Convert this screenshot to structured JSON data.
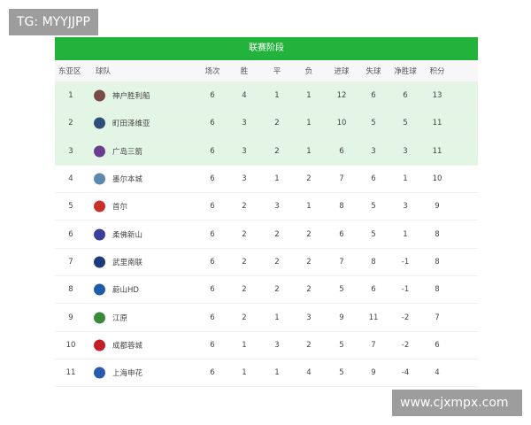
{
  "watermark_top": "TG: MYYJJPP",
  "watermark_bottom": "www.cjxmpx.com",
  "table": {
    "title": "联赛阶段",
    "headers": [
      "东亚区",
      "球队",
      "场次",
      "胜",
      "平",
      "负",
      "进球",
      "失球",
      "净胜球",
      "积分"
    ],
    "rows": [
      {
        "rank": "1",
        "team": "神户胜利船",
        "p": "6",
        "w": "4",
        "d": "1",
        "l": "1",
        "gf": "12",
        "ga": "6",
        "gd": "6",
        "pts": "13",
        "logo_color": "#7a4a4a"
      },
      {
        "rank": "2",
        "team": "町田泽维亚",
        "p": "6",
        "w": "3",
        "d": "2",
        "l": "1",
        "gf": "10",
        "ga": "5",
        "gd": "5",
        "pts": "11",
        "logo_color": "#2f4f7a"
      },
      {
        "rank": "3",
        "team": "广岛三箭",
        "p": "6",
        "w": "3",
        "d": "2",
        "l": "1",
        "gf": "6",
        "ga": "3",
        "gd": "3",
        "pts": "11",
        "logo_color": "#6a3d8f"
      },
      {
        "rank": "4",
        "team": "墨尔本城",
        "p": "6",
        "w": "3",
        "d": "1",
        "l": "2",
        "gf": "7",
        "ga": "6",
        "gd": "1",
        "pts": "10",
        "logo_color": "#5e88b0"
      },
      {
        "rank": "5",
        "team": "首尔",
        "p": "6",
        "w": "2",
        "d": "3",
        "l": "1",
        "gf": "8",
        "ga": "5",
        "gd": "3",
        "pts": "9",
        "logo_color": "#c8302a"
      },
      {
        "rank": "6",
        "team": "柔佛新山",
        "p": "6",
        "w": "2",
        "d": "2",
        "l": "2",
        "gf": "6",
        "ga": "5",
        "gd": "1",
        "pts": "8",
        "logo_color": "#3b3f9a"
      },
      {
        "rank": "7",
        "team": "武里南联",
        "p": "6",
        "w": "2",
        "d": "2",
        "l": "2",
        "gf": "7",
        "ga": "8",
        "gd": "-1",
        "pts": "8",
        "logo_color": "#1f3a7a"
      },
      {
        "rank": "8",
        "team": "蔚山HD",
        "p": "6",
        "w": "2",
        "d": "2",
        "l": "2",
        "gf": "5",
        "ga": "6",
        "gd": "-1",
        "pts": "8",
        "logo_color": "#1f5ca8"
      },
      {
        "rank": "9",
        "team": "江原",
        "p": "6",
        "w": "2",
        "d": "1",
        "l": "3",
        "gf": "9",
        "ga": "11",
        "gd": "-2",
        "pts": "7",
        "logo_color": "#3a8a3a"
      },
      {
        "rank": "10",
        "team": "成都蓉城",
        "p": "6",
        "w": "1",
        "d": "3",
        "l": "2",
        "gf": "5",
        "ga": "7",
        "gd": "-2",
        "pts": "6",
        "logo_color": "#c41e2a"
      },
      {
        "rank": "11",
        "team": "上海申花",
        "p": "6",
        "w": "1",
        "d": "1",
        "l": "4",
        "gf": "5",
        "ga": "9",
        "gd": "-4",
        "pts": "4",
        "logo_color": "#2a5ab0"
      }
    ],
    "highlight_color": "#e3f5e5",
    "header_color": "#23b23c"
  }
}
